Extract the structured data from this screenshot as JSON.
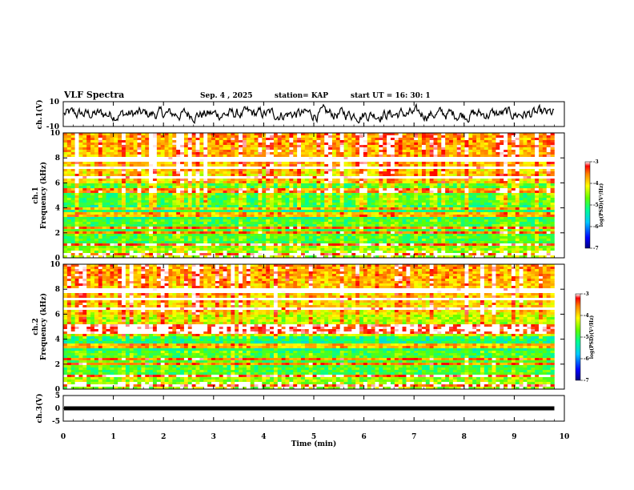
{
  "header": {
    "title": "VLF Spectra",
    "date": "Sep. 4 , 2025",
    "station": "station= KAP",
    "start": "start UT =   16: 30: 1"
  },
  "chart_data": [
    {
      "type": "line",
      "panel": "ch1-waveform",
      "ylabel": "ch.1(V)",
      "ylim": [
        -10,
        10
      ],
      "yticks": [
        "10",
        "-10"
      ],
      "note": "broadband VLF waveform amplitude envelope"
    },
    {
      "type": "heatmap",
      "panel": "ch1-spectrogram",
      "ylabel_top": "ch.1",
      "ylabel": "Frequency (kHz)",
      "ylim": [
        0,
        10
      ],
      "yticks": [
        "10",
        "8",
        "6",
        "4",
        "2",
        "0"
      ],
      "colorbar": {
        "label": "log(PSD)(V²/Hz)",
        "range": [
          -7,
          -3
        ],
        "ticks": [
          "-3",
          "-4",
          "-5",
          "-6",
          "-7"
        ]
      },
      "bands_khz": [
        0.3,
        1.1,
        2.0,
        2.4,
        3.3,
        3.6,
        4.0,
        5.4,
        6.5,
        7.2,
        7.9
      ]
    },
    {
      "type": "heatmap",
      "panel": "ch2-spectrogram",
      "ylabel_top": "ch.2",
      "ylabel": "Frequency (kHz)",
      "ylim": [
        0,
        10
      ],
      "yticks": [
        "10",
        "8",
        "6",
        "4",
        "2",
        "0"
      ],
      "colorbar": {
        "label": "log(PSD)(V²/Hz)",
        "range": [
          -7,
          -3
        ],
        "ticks": [
          "-3",
          "-4",
          "-5",
          "-6",
          "-7"
        ]
      },
      "bands_khz": [
        0.3,
        1.1,
        2.0,
        2.4,
        3.3,
        3.6,
        4.6,
        5.0,
        6.5,
        7.2,
        7.9
      ]
    },
    {
      "type": "line",
      "panel": "ch3-signal",
      "ylabel": "ch.3(V)",
      "ylim": [
        -5,
        5
      ],
      "yticks": [
        "5",
        "0",
        "-5"
      ],
      "level": 0
    }
  ],
  "xaxis": {
    "label": "Time (min)",
    "range": [
      0,
      10
    ],
    "data_end": 9.8,
    "ticks": [
      "0",
      "1",
      "2",
      "3",
      "4",
      "5",
      "6",
      "7",
      "8",
      "9",
      "10"
    ]
  }
}
